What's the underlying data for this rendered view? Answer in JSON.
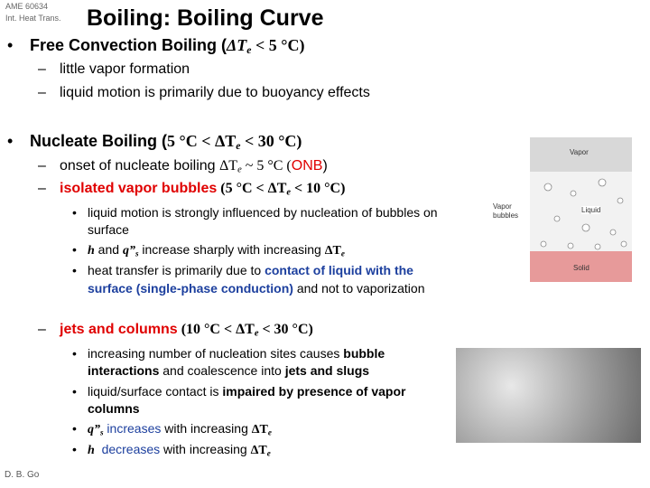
{
  "header": {
    "course": "AME 60634",
    "subtitle": "Int. Heat Trans.",
    "title": "Boiling: Boiling Curve"
  },
  "lines": [
    {
      "marker": "•",
      "level": 1,
      "segments": [
        {
          "text": "Free Convection Boiling (",
          "style": "b"
        },
        {
          "text": "ΔT",
          "style": "b s i"
        },
        {
          "text": "e",
          "style": "b s i sub"
        },
        {
          "text": " < 5 °C)",
          "style": "b s"
        }
      ]
    },
    {
      "marker": "–",
      "level": 2,
      "segments": [
        {
          "text": "little vapor formation",
          "style": ""
        }
      ]
    },
    {
      "marker": "–",
      "level": 2,
      "segments": [
        {
          "text": "liquid motion is primarily due to buoyancy effects",
          "style": ""
        }
      ]
    },
    {
      "marker": "•",
      "level": 1,
      "segments": [
        {
          "text": "Nucleate Boiling (",
          "style": "b"
        },
        {
          "text": "5 °C < ΔT",
          "style": "b s"
        },
        {
          "text": "e",
          "style": "b s i sub"
        },
        {
          "text": " < 30 °C)",
          "style": "b s"
        }
      ]
    },
    {
      "marker": "–",
      "level": 2,
      "segments": [
        {
          "text": "onset of nucleate boiling ",
          "style": ""
        },
        {
          "text": "ΔT",
          "style": "s"
        },
        {
          "text": "e",
          "style": "s i sub"
        },
        {
          "text": " ~ 5 °C (",
          "style": "s"
        },
        {
          "text": "ONB",
          "style": "red"
        },
        {
          "text": ")",
          "style": ""
        }
      ]
    },
    {
      "marker": "–",
      "level": 2,
      "segments": [
        {
          "text": "isolated vapor bubbles",
          "style": "b red"
        },
        {
          "text": " (5 °C < ΔT",
          "style": "b s"
        },
        {
          "text": "e",
          "style": "b s i sub"
        },
        {
          "text": " < 10 °C)",
          "style": "b s"
        }
      ]
    },
    {
      "marker": "•",
      "level": 3,
      "segments": [
        {
          "text": "liquid motion is strongly influenced by nucleation of bubbles on",
          "style": ""
        }
      ]
    },
    {
      "level": 3,
      "segments": [
        {
          "text": "surface",
          "style": ""
        }
      ]
    },
    {
      "marker": "•",
      "level": 3,
      "segments": [
        {
          "text": "h",
          "style": "b i s"
        },
        {
          "text": " and ",
          "style": ""
        },
        {
          "text": "q”",
          "style": "b i s"
        },
        {
          "text": "s",
          "style": "b i s sub"
        },
        {
          "text": " increase sharply with increasing ",
          "style": ""
        },
        {
          "text": "ΔT",
          "style": "b s"
        },
        {
          "text": "e",
          "style": "b i s sub"
        }
      ]
    },
    {
      "marker": "•",
      "level": 3,
      "segments": [
        {
          "text": "heat transfer is primarily due to ",
          "style": ""
        },
        {
          "text": "contact of liquid with the",
          "style": "b blue"
        }
      ]
    },
    {
      "level": 3,
      "segments": [
        {
          "text": "surface (single-phase conduction)",
          "style": "b blue"
        },
        {
          "text": " and not to vaporization",
          "style": ""
        }
      ]
    },
    {
      "marker": "–",
      "level": 2,
      "segments": [
        {
          "text": "jets and columns",
          "style": "b red"
        },
        {
          "text": " (10 °C < ΔT",
          "style": "b s"
        },
        {
          "text": "e",
          "style": "b s i sub"
        },
        {
          "text": " < 30 °C)",
          "style": "b s"
        }
      ]
    },
    {
      "marker": "•",
      "level": 3,
      "segments": [
        {
          "text": "increasing number of nucleation sites causes ",
          "style": ""
        },
        {
          "text": "bubble",
          "style": "b"
        }
      ]
    },
    {
      "level": 3,
      "segments": [
        {
          "text": "interactions",
          "style": "b"
        },
        {
          "text": " and coalescence into ",
          "style": ""
        },
        {
          "text": "jets and slugs",
          "style": "b"
        }
      ]
    },
    {
      "marker": "•",
      "level": 3,
      "segments": [
        {
          "text": "liquid/surface contact is ",
          "style": ""
        },
        {
          "text": "impaired by presence of vapor",
          "style": "b"
        }
      ]
    },
    {
      "level": 3,
      "segments": [
        {
          "text": "columns",
          "style": "b"
        }
      ]
    },
    {
      "marker": "•",
      "level": 3,
      "segments": [
        {
          "text": "q”",
          "style": "b i s"
        },
        {
          "text": "s",
          "style": "b i s sub"
        },
        {
          "text": " increases",
          "style": "blue"
        },
        {
          "text": " with increasing ",
          "style": ""
        },
        {
          "text": "ΔT",
          "style": "b s"
        },
        {
          "text": "e",
          "style": "b i s sub"
        }
      ]
    },
    {
      "marker": "•",
      "level": 3,
      "segments": [
        {
          "text": "h",
          "style": "b i s"
        },
        {
          "text": "  decreases",
          "style": "blue"
        },
        {
          "text": " with increasing ",
          "style": ""
        },
        {
          "text": "ΔT",
          "style": "b s"
        },
        {
          "text": "e",
          "style": "b i s sub"
        }
      ]
    }
  ],
  "figure": {
    "vapor": "Vapor",
    "liquid": "Liquid",
    "solid": "Solid",
    "bubbles": [
      "Vapor",
      "bubbles"
    ]
  },
  "footer": "D. B. Go"
}
